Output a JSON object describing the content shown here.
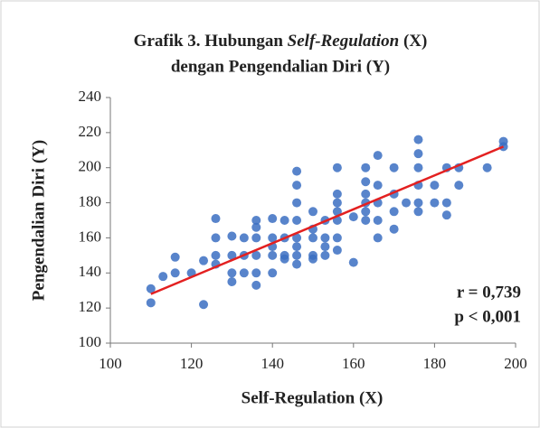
{
  "chart_data": {
    "type": "scatter",
    "title": {
      "line1": [
        "Grafik 3. Hubungan ",
        "Self-Regulation",
        " (X)"
      ],
      "line2": "dengan Pengendalian Diri (Y)"
    },
    "x_label": "Self-Regulation (X)",
    "y_label": "Pengendalian Diri (Y)",
    "x": [
      110,
      110,
      113,
      116,
      116,
      120,
      123,
      123,
      126,
      126,
      126,
      126,
      130,
      130,
      130,
      130,
      133,
      133,
      133,
      136,
      136,
      136,
      136,
      136,
      136,
      140,
      140,
      140,
      140,
      140,
      143,
      143,
      143,
      143,
      146,
      146,
      146,
      146,
      146,
      146,
      146,
      146,
      150,
      150,
      150,
      150,
      150,
      153,
      153,
      153,
      153,
      156,
      156,
      156,
      156,
      156,
      156,
      156,
      160,
      160,
      163,
      163,
      163,
      163,
      163,
      163,
      166,
      166,
      166,
      166,
      166,
      170,
      170,
      170,
      170,
      173,
      176,
      176,
      176,
      176,
      176,
      176,
      180,
      180,
      183,
      183,
      183,
      186,
      186,
      193,
      197,
      197
    ],
    "values": [
      131,
      123,
      138,
      149,
      140,
      140,
      122,
      147,
      171,
      160,
      150,
      145,
      161,
      150,
      140,
      135,
      160,
      150,
      140,
      170,
      166,
      160,
      150,
      140,
      133,
      171,
      160,
      155,
      150,
      140,
      170,
      160,
      150,
      148,
      198,
      190,
      180,
      170,
      160,
      155,
      150,
      145,
      175,
      165,
      160,
      150,
      148,
      170,
      160,
      155,
      150,
      200,
      185,
      180,
      175,
      170,
      160,
      153,
      172,
      146,
      200,
      192,
      185,
      180,
      175,
      170,
      207,
      190,
      180,
      170,
      160,
      200,
      185,
      175,
      165,
      180,
      216,
      208,
      200,
      190,
      180,
      175,
      190,
      180,
      200,
      180,
      173,
      200,
      190,
      200,
      215,
      212
    ],
    "color": "#3b6fc2",
    "trendline": {
      "x": [
        110,
        197
      ],
      "y": [
        128,
        212
      ],
      "color": "#e32020"
    },
    "annotations": [
      "r = 0,739",
      "p < 0,001"
    ],
    "xlim": [
      100,
      200
    ],
    "xticks": [
      100,
      120,
      140,
      160,
      180,
      200
    ],
    "ylim": [
      100,
      240
    ],
    "yticks": [
      100,
      120,
      140,
      160,
      180,
      200,
      220,
      240
    ]
  }
}
